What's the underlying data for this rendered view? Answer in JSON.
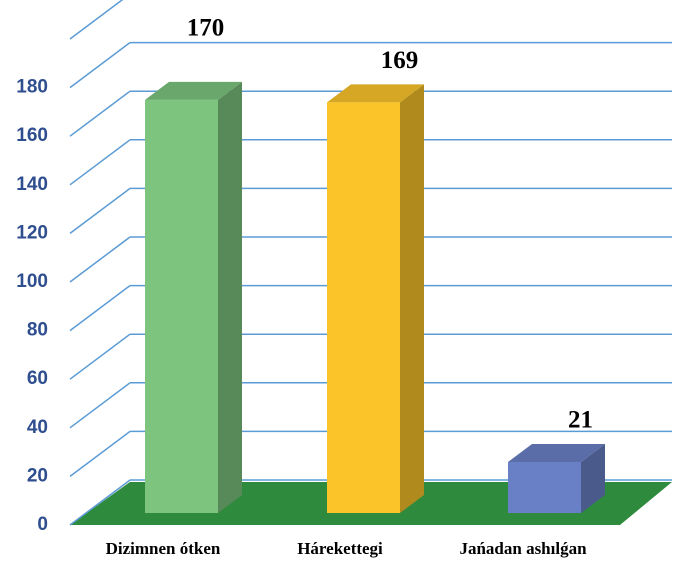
{
  "chart_data": {
    "type": "bar3d",
    "categories": [
      "Dizimnen ótken",
      "Hárekettegi",
      "Jańadan ashılǵan"
    ],
    "values": [
      170,
      169,
      21
    ],
    "colors": [
      "#7dc47f",
      "#fbc52a",
      "#6a80c6"
    ],
    "ylim": [
      0,
      200
    ],
    "yticks": [
      0,
      20,
      40,
      60,
      80,
      100,
      120,
      140,
      160,
      180
    ],
    "grid": true
  }
}
